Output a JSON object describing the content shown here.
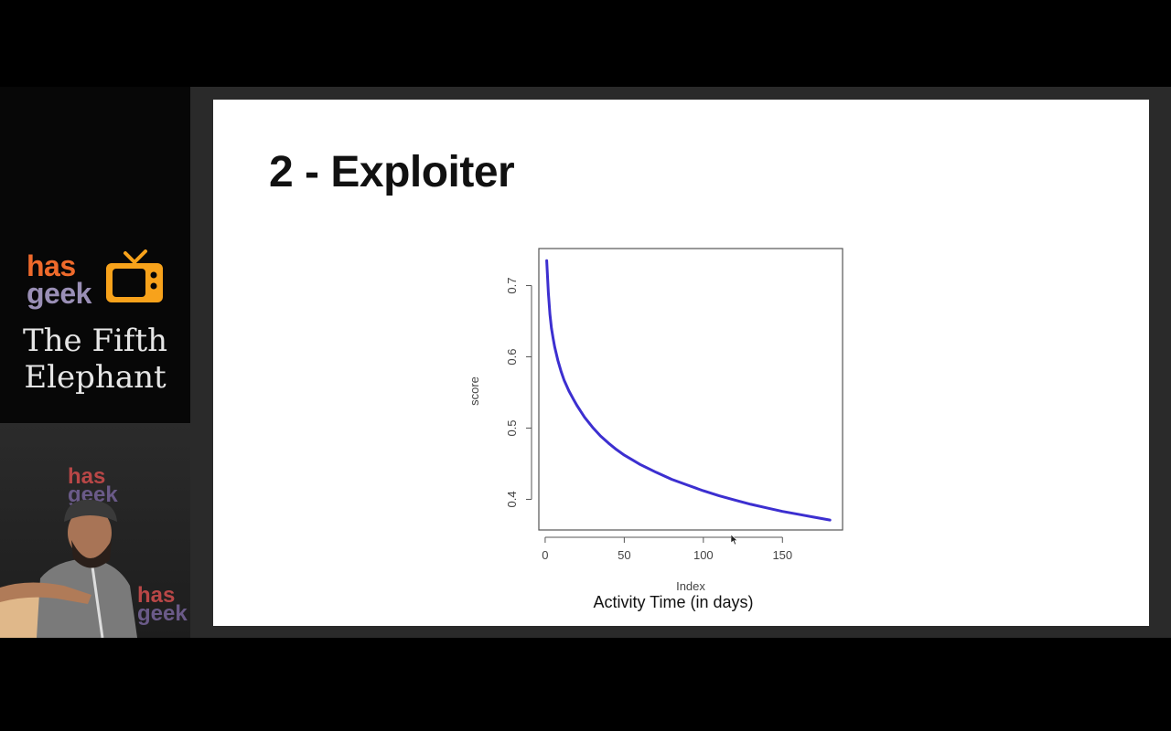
{
  "sidebar": {
    "logo": {
      "has": "has",
      "geek": "geek",
      "has_color": "#ef6a2b",
      "geek_color": "#9a8fb6",
      "tv_color": "#f7a21b"
    },
    "event": {
      "line1": "The Fifth",
      "line2": "Elephant"
    },
    "video_bg": {
      "has": "has",
      "geek": "geek"
    }
  },
  "slide": {
    "title": "2 - Exploiter",
    "caption": "Activity Time (in days)"
  },
  "chart_data": {
    "type": "line",
    "xlabel": "Index",
    "ylabel": "score",
    "xlim": [
      -4,
      188
    ],
    "ylim": [
      0.357,
      0.752
    ],
    "x_ticks": [
      0,
      50,
      100,
      150
    ],
    "y_ticks": [
      0.4,
      0.5,
      0.6,
      0.7
    ],
    "grid": false,
    "line_color": "#3c2fd0",
    "series": [
      {
        "x": [
          1,
          2,
          3,
          4,
          5,
          6,
          8,
          10,
          12,
          15,
          18,
          20,
          25,
          30,
          35,
          40,
          45,
          50,
          60,
          70,
          80,
          90,
          100,
          110,
          120,
          130,
          140,
          150,
          160,
          170,
          180
        ],
        "y": [
          0.735,
          0.69,
          0.66,
          0.64,
          0.626,
          0.614,
          0.595,
          0.58,
          0.567,
          0.552,
          0.54,
          0.532,
          0.515,
          0.501,
          0.489,
          0.479,
          0.47,
          0.462,
          0.449,
          0.438,
          0.428,
          0.42,
          0.412,
          0.405,
          0.399,
          0.393,
          0.388,
          0.383,
          0.379,
          0.375,
          0.371
        ]
      }
    ]
  }
}
